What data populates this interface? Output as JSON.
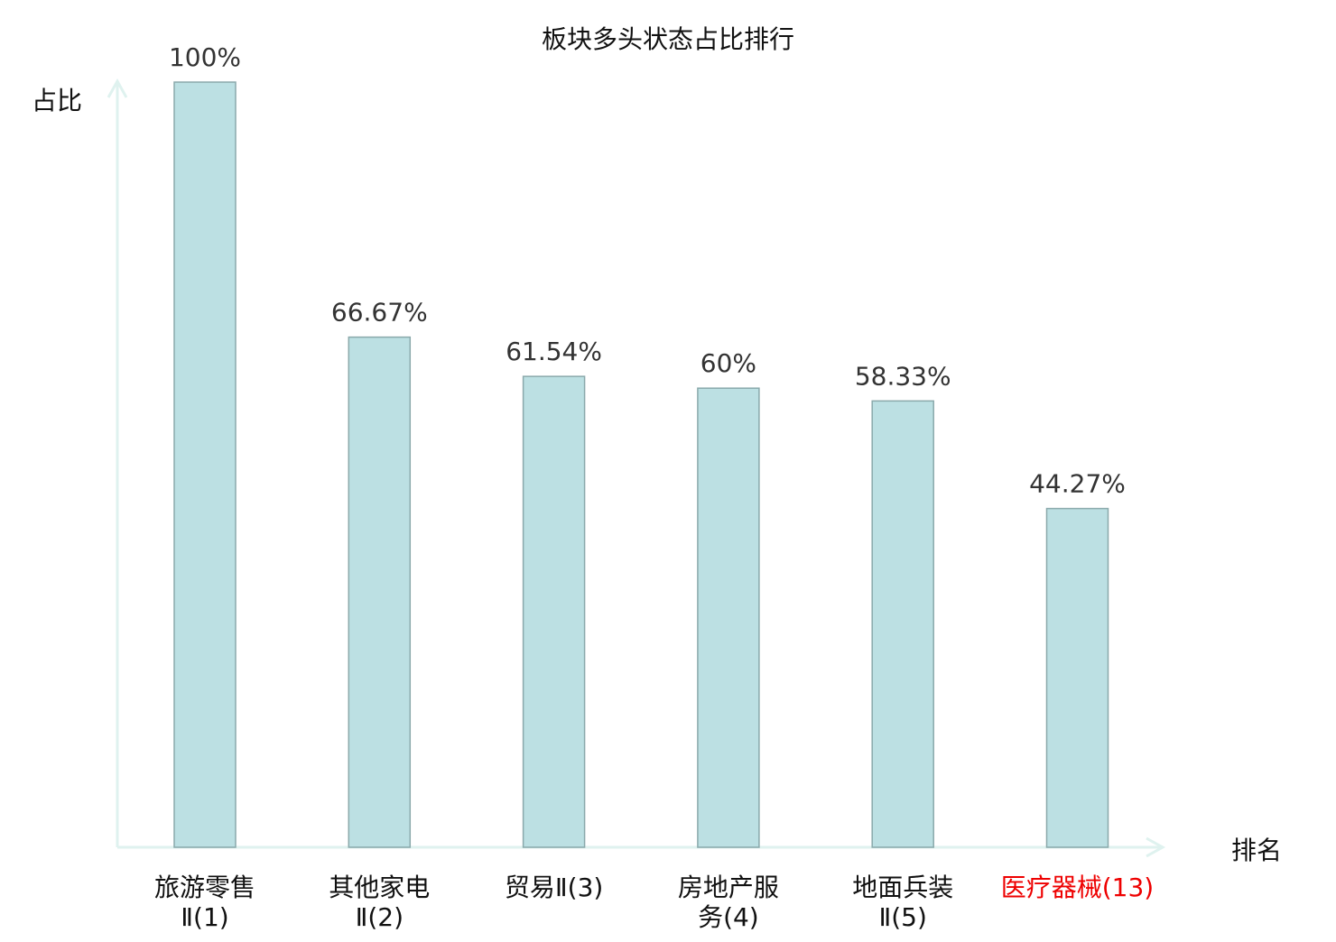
{
  "chart_data": {
    "type": "bar",
    "title": "板块多头状态占比排行",
    "xlabel": "排名",
    "ylabel": "占比",
    "categories": [
      "旅游零售\nⅡ(1)",
      "其他家电\nⅡ(2)",
      "贸易Ⅱ(3)",
      "房地产服\n务(4)",
      "地面兵装\nⅡ(5)",
      "医疗器械(13)"
    ],
    "values": [
      100,
      66.67,
      61.54,
      60,
      58.33,
      44.27
    ],
    "data_labels": [
      "100%",
      "66.67%",
      "61.54%",
      "60%",
      "58.33%",
      "44.27%"
    ],
    "highlight_index": 5,
    "ylim": [
      0,
      100
    ],
    "grid": false,
    "colors": {
      "bar_fill": "#bce0e3",
      "bar_stroke": "#8aa9ab",
      "axis": "#dff2ef",
      "label": "#333333",
      "highlight": "#ee0000",
      "text": "#111111"
    }
  }
}
